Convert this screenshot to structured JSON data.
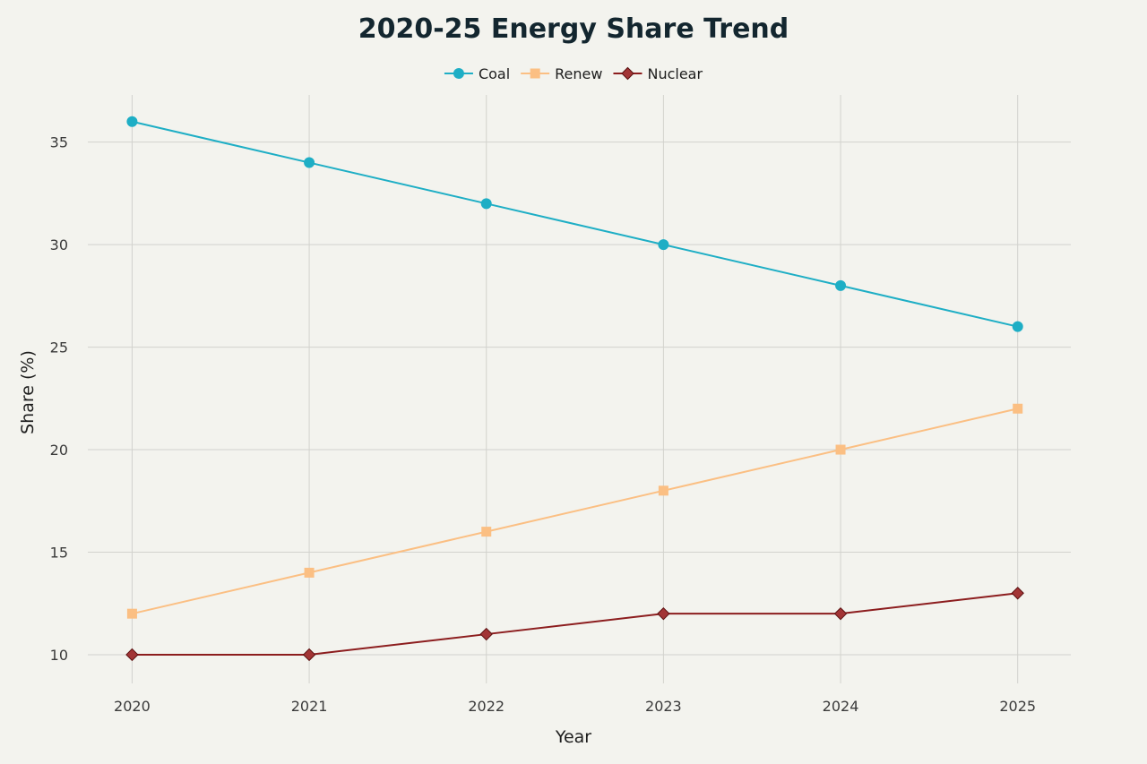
{
  "chart_data": {
    "type": "line",
    "title": "2020-25 Energy Share Trend",
    "xlabel": "Year",
    "ylabel": "Share (%)",
    "x": [
      "2020",
      "2021",
      "2022",
      "2023",
      "2024",
      "2025"
    ],
    "xlim": [
      2019.75,
      2025.3
    ],
    "ylim": [
      8.6,
      37.3
    ],
    "yticks": [
      10,
      15,
      20,
      25,
      30,
      35
    ],
    "grid": true,
    "legend_position": "top-center",
    "series": [
      {
        "name": "Coal",
        "values": [
          36,
          34,
          32,
          30,
          28,
          26
        ],
        "color": "#1eaec5",
        "marker": "circle"
      },
      {
        "name": "Renew",
        "values": [
          12,
          14,
          16,
          18,
          20,
          22
        ],
        "color": "#fbbf83",
        "marker": "square"
      },
      {
        "name": "Nuclear",
        "values": [
          10,
          10,
          11,
          12,
          12,
          13
        ],
        "color": "#8c1d1e",
        "marker": "diamond"
      }
    ]
  }
}
